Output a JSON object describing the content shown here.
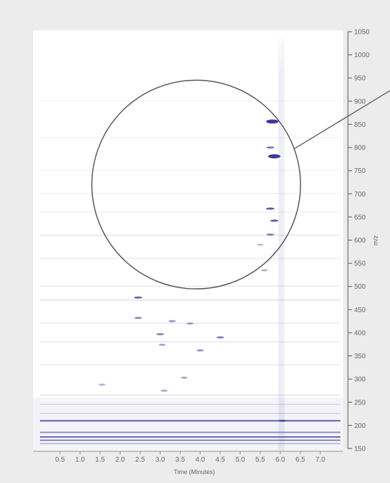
{
  "chart_data": {
    "type": "heatmap",
    "title": "",
    "xlabel": "Time (Minutes)",
    "ylabel": "m/z",
    "xlim": [
      0,
      7.5
    ],
    "ylim": [
      150,
      1050
    ],
    "x_ticks": [
      0.5,
      1.0,
      1.5,
      2.0,
      2.5,
      3.0,
      3.5,
      4.0,
      4.5,
      5.0,
      5.5,
      6.0,
      6.5,
      7.0
    ],
    "x_tick_labels": [
      "0.5",
      "1.0",
      "1.5",
      "2.0",
      "2.5",
      "3.0",
      "3.5",
      "4.0",
      "4.5",
      "5.0",
      "5.5",
      "6.0",
      "6.5",
      "7.0"
    ],
    "y_ticks": [
      150,
      200,
      250,
      300,
      350,
      400,
      450,
      500,
      550,
      600,
      650,
      700,
      750,
      800,
      850,
      900,
      950,
      1000,
      1050
    ],
    "y_tick_labels": [
      "150",
      "200",
      "250",
      "300",
      "350",
      "400",
      "450",
      "500",
      "550",
      "600",
      "650",
      "700",
      "750",
      "800",
      "850",
      "900",
      "950",
      "1000",
      "1050"
    ],
    "axis_position": "right",
    "grid": false,
    "colors": {
      "intensity": "#3d3a9a",
      "background": "#ffffff",
      "panel": "#ececec",
      "annotation": "#555555"
    },
    "horizontal_bands": [
      {
        "mz": 210,
        "x_start": 0.0,
        "x_end": 7.5,
        "intensity": 0.85
      },
      {
        "mz": 185,
        "x_start": 0.0,
        "x_end": 7.5,
        "intensity": 0.55
      },
      {
        "mz": 175,
        "x_start": 0.0,
        "x_end": 7.5,
        "intensity": 0.8
      },
      {
        "mz": 168,
        "x_start": 0.0,
        "x_end": 7.5,
        "intensity": 0.6
      },
      {
        "mz": 160,
        "x_start": 0.0,
        "x_end": 7.5,
        "intensity": 0.45
      },
      {
        "mz": 225,
        "x_start": 0.0,
        "x_end": 7.5,
        "intensity": 0.25
      },
      {
        "mz": 245,
        "x_start": 0.0,
        "x_end": 7.5,
        "intensity": 0.2
      },
      {
        "mz": 265,
        "x_start": 0.0,
        "x_end": 7.5,
        "intensity": 0.18
      },
      {
        "mz": 330,
        "x_start": 0.0,
        "x_end": 7.5,
        "intensity": 0.14
      },
      {
        "mz": 380,
        "x_start": 0.0,
        "x_end": 7.5,
        "intensity": 0.16
      },
      {
        "mz": 420,
        "x_start": 0.0,
        "x_end": 7.5,
        "intensity": 0.14
      },
      {
        "mz": 470,
        "x_start": 0.0,
        "x_end": 7.5,
        "intensity": 0.2
      },
      {
        "mz": 500,
        "x_start": 0.0,
        "x_end": 7.5,
        "intensity": 0.14
      },
      {
        "mz": 560,
        "x_start": 0.0,
        "x_end": 7.5,
        "intensity": 0.12
      },
      {
        "mz": 610,
        "x_start": 0.0,
        "x_end": 7.5,
        "intensity": 0.16
      },
      {
        "mz": 660,
        "x_start": 0.0,
        "x_end": 7.5,
        "intensity": 0.1
      },
      {
        "mz": 700,
        "x_start": 0.0,
        "x_end": 7.5,
        "intensity": 0.1
      },
      {
        "mz": 750,
        "x_start": 0.0,
        "x_end": 7.5,
        "intensity": 0.08
      },
      {
        "mz": 820,
        "x_start": 0.0,
        "x_end": 7.5,
        "intensity": 0.08
      },
      {
        "mz": 900,
        "x_start": 0.0,
        "x_end": 7.5,
        "intensity": 0.06
      }
    ],
    "peaks": [
      {
        "time": 5.85,
        "mz": 781,
        "intensity": 0.95
      },
      {
        "time": 5.75,
        "mz": 800,
        "intensity": 0.6
      },
      {
        "time": 5.8,
        "mz": 856,
        "intensity": 0.9
      },
      {
        "time": 5.75,
        "mz": 668,
        "intensity": 0.75
      },
      {
        "time": 5.85,
        "mz": 642,
        "intensity": 0.7
      },
      {
        "time": 5.75,
        "mz": 612,
        "intensity": 0.55
      },
      {
        "time": 2.45,
        "mz": 476,
        "intensity": 0.7
      },
      {
        "time": 2.45,
        "mz": 432,
        "intensity": 0.5
      },
      {
        "time": 3.0,
        "mz": 397,
        "intensity": 0.55
      },
      {
        "time": 3.3,
        "mz": 425,
        "intensity": 0.45
      },
      {
        "time": 3.75,
        "mz": 420,
        "intensity": 0.4
      },
      {
        "time": 4.5,
        "mz": 390,
        "intensity": 0.55
      },
      {
        "time": 4.0,
        "mz": 362,
        "intensity": 0.45
      },
      {
        "time": 3.05,
        "mz": 374,
        "intensity": 0.35
      },
      {
        "time": 3.6,
        "mz": 303,
        "intensity": 0.35
      },
      {
        "time": 3.1,
        "mz": 275,
        "intensity": 0.35
      },
      {
        "time": 1.55,
        "mz": 288,
        "intensity": 0.3
      },
      {
        "time": 5.6,
        "mz": 535,
        "intensity": 0.3
      },
      {
        "time": 5.5,
        "mz": 590,
        "intensity": 0.25
      },
      {
        "time": 6.05,
        "mz": 210,
        "intensity": 0.6
      }
    ],
    "vertical_band": {
      "x_start": 5.95,
      "x_end": 6.1,
      "intensity": 0.25
    },
    "annotation": {
      "type": "circle",
      "center_time": 3.9,
      "center_mz": 720,
      "radius_time": 2.55,
      "radius_mz": 230,
      "callout_line_to": "top-right"
    }
  }
}
